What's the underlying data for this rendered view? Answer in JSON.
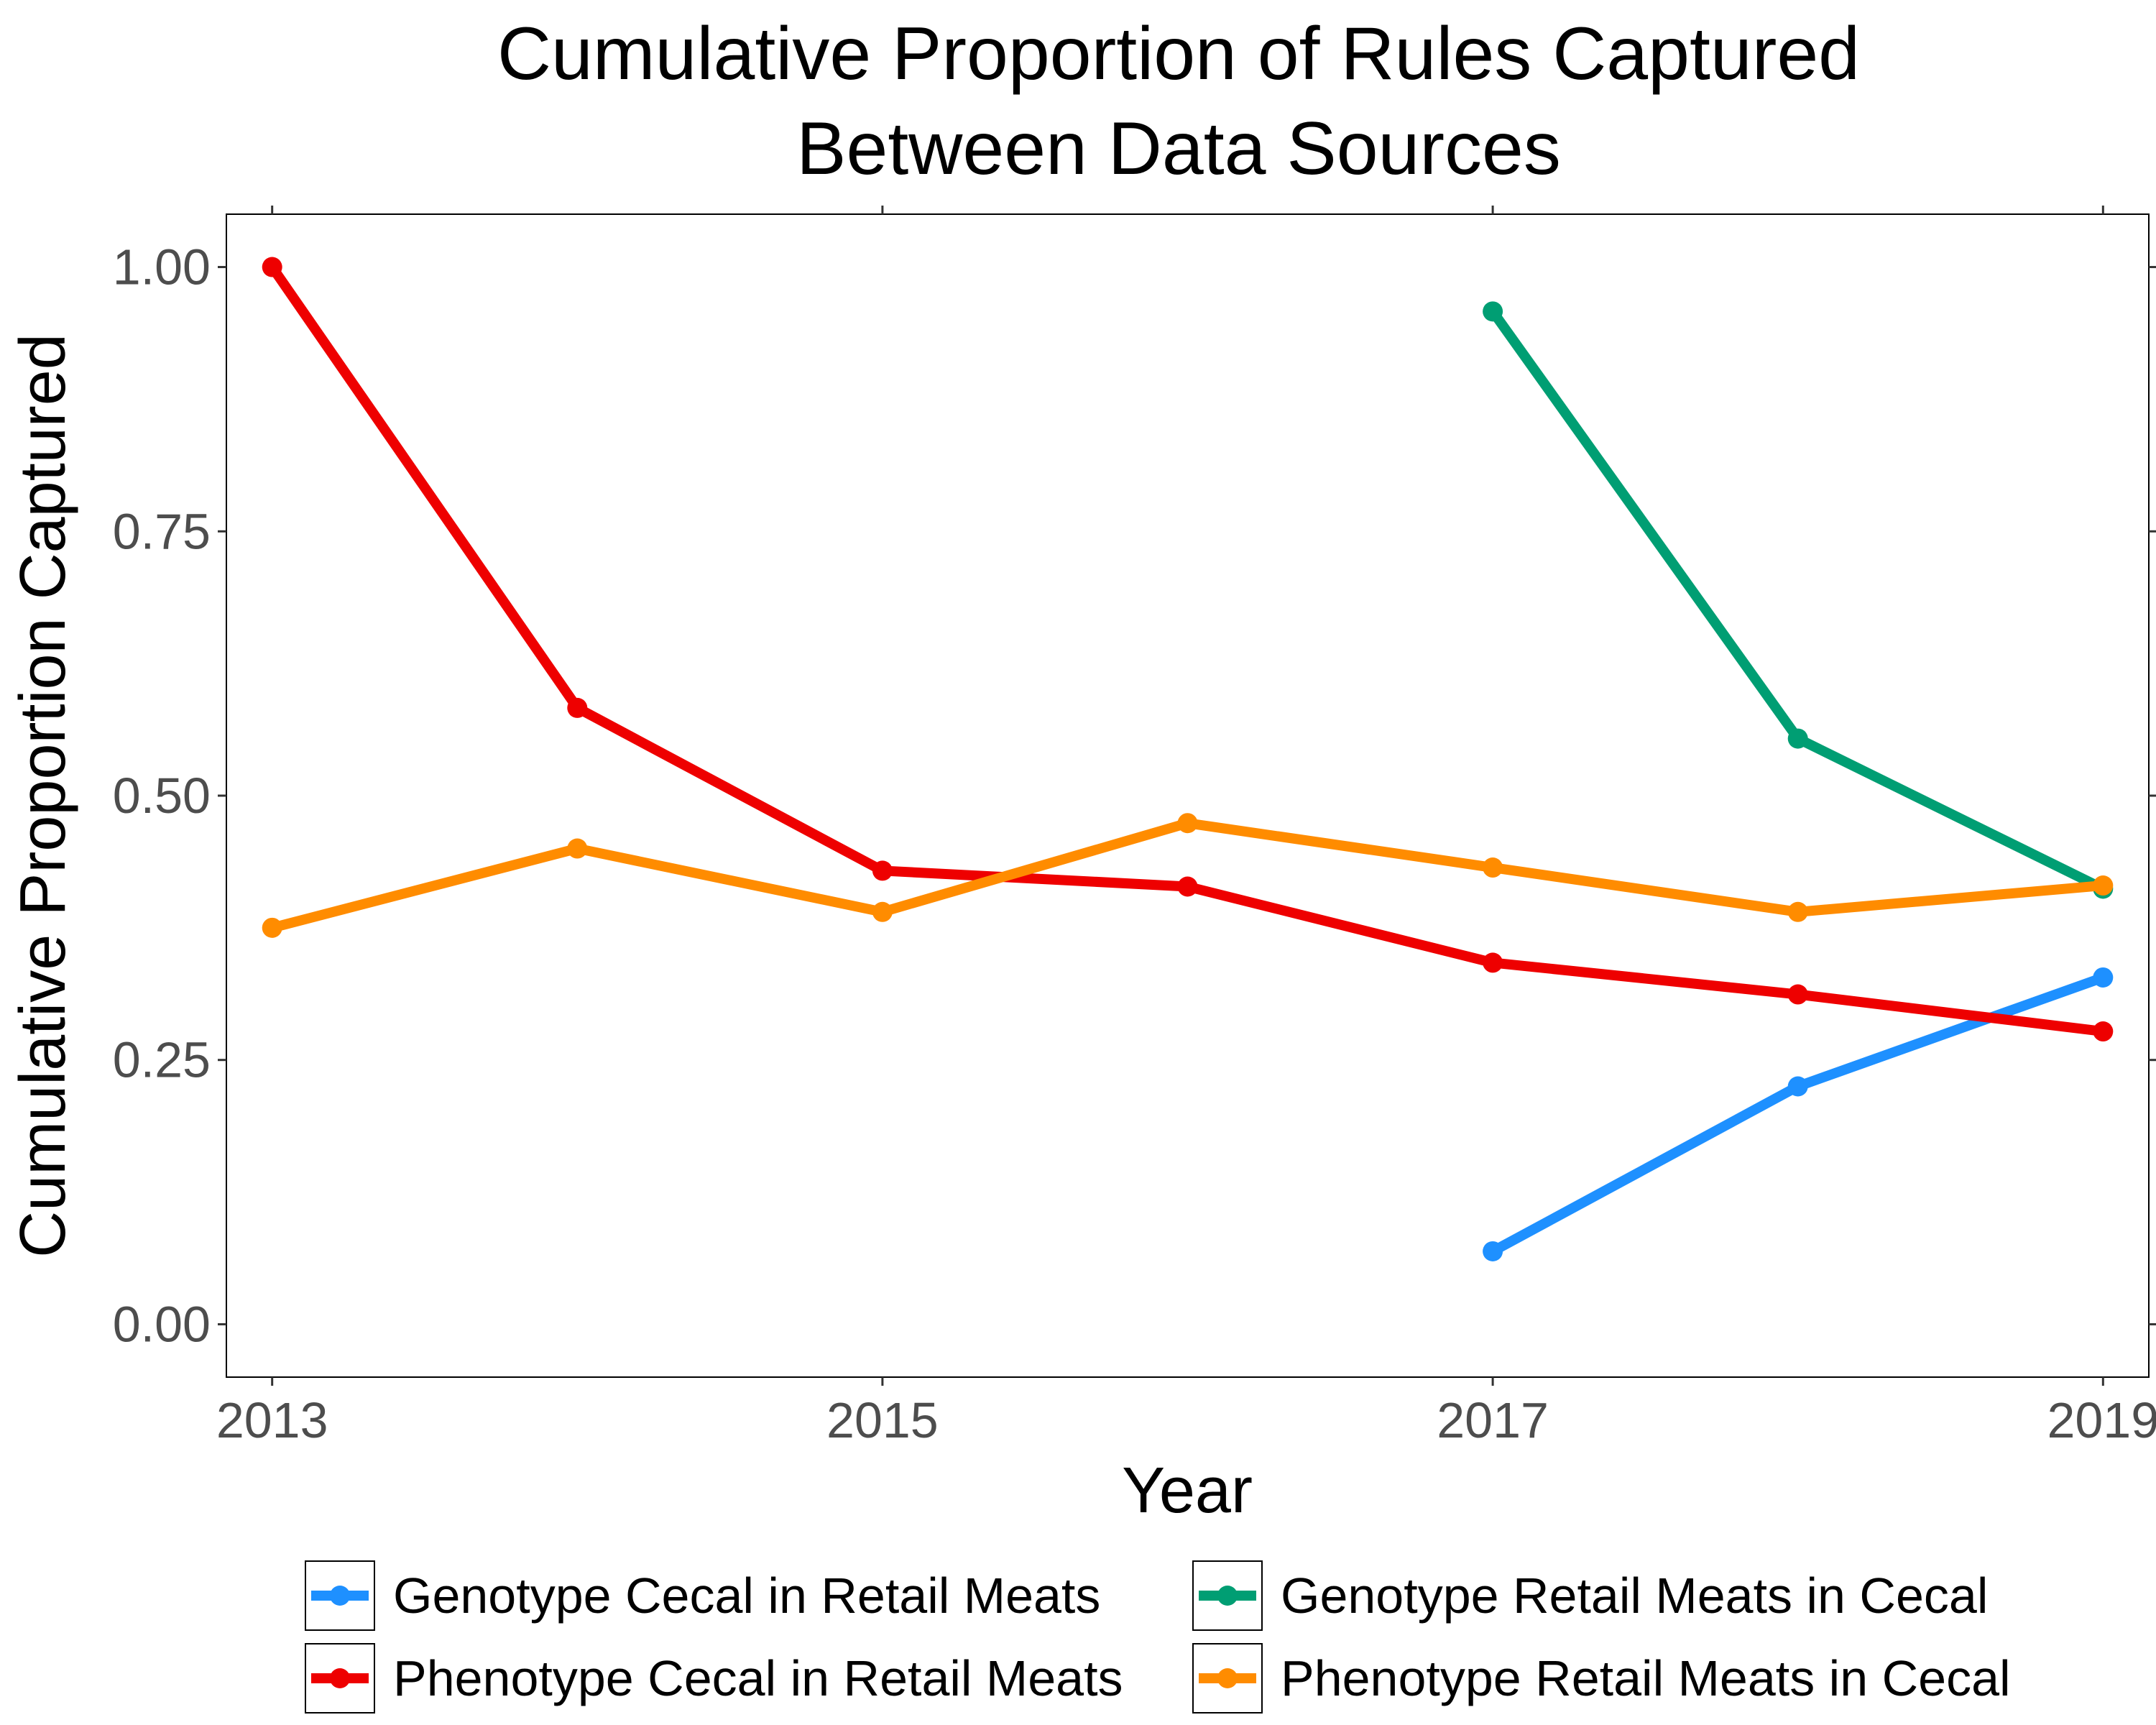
{
  "chart_data": {
    "type": "line",
    "title_lines": [
      "Cumulative Proportion of Rules Captured",
      "Between Data Sources"
    ],
    "xlabel": "Year",
    "ylabel": "Cumulative Proportion Captured",
    "xlim": [
      2012.85,
      2019.15
    ],
    "ylim": [
      -0.05,
      1.05
    ],
    "x_ticks": [
      2013,
      2015,
      2017,
      2019
    ],
    "x_tick_labels": [
      "2013",
      "2015",
      "2017",
      "2019"
    ],
    "y_ticks": [
      0.0,
      0.25,
      0.5,
      0.75,
      1.0
    ],
    "y_tick_labels": [
      "0.00",
      "0.25",
      "0.50",
      "0.75",
      "1.00"
    ],
    "grid": false,
    "legend_position": "bottom",
    "series": [
      {
        "name": "Genotype Cecal in Retail Meats",
        "color": "#1e90ff",
        "x": [
          2017,
          2018,
          2019
        ],
        "y": [
          0.069,
          0.225,
          0.328
        ]
      },
      {
        "name": "Genotype Retail Meats in Cecal",
        "color": "#009e73",
        "x": [
          2017,
          2018,
          2019
        ],
        "y": [
          0.958,
          0.554,
          0.412
        ]
      },
      {
        "name": "Phenotype Cecal in Retail Meats",
        "color": "#ee0000",
        "x": [
          2013,
          2014,
          2015,
          2016,
          2017,
          2018,
          2019
        ],
        "y": [
          1.0,
          0.583,
          0.429,
          0.414,
          0.342,
          0.312,
          0.277
        ]
      },
      {
        "name": "Phenotype Retail Meats in Cecal",
        "color": "#ff8c00",
        "x": [
          2013,
          2014,
          2015,
          2016,
          2017,
          2018,
          2019
        ],
        "y": [
          0.375,
          0.45,
          0.39,
          0.474,
          0.432,
          0.39,
          0.415
        ]
      }
    ]
  }
}
